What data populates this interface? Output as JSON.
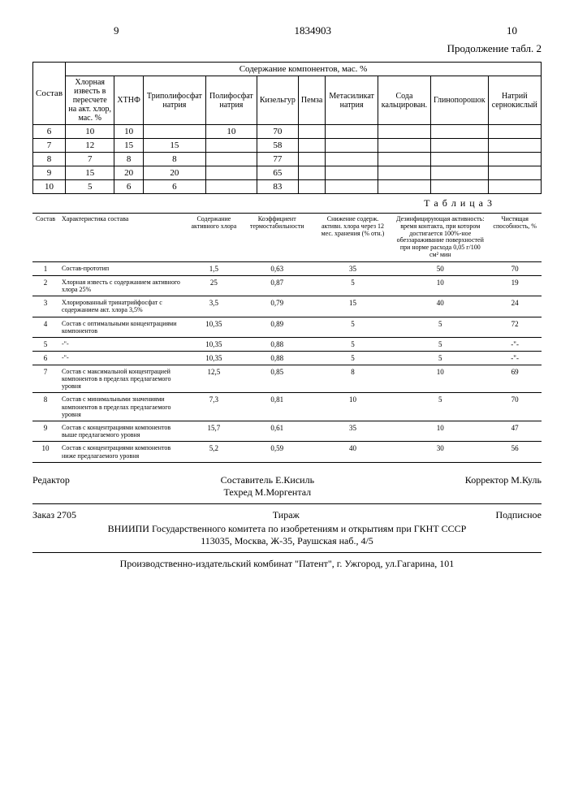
{
  "header": {
    "page_left": "9",
    "doc_number": "1834903",
    "page_right": "10",
    "continuation": "Продолжение табл. 2"
  },
  "table2": {
    "caption": "Содержание компонентов, мас. %",
    "columns": [
      "Состав",
      "Хлорная известь в пересчете на акт. хлор, мас. %",
      "ХТНФ",
      "Триполифосфат натрия",
      "Полифосфат натрия",
      "Кизельгур",
      "Пемза",
      "Метасиликат натрия",
      "Сода кальцирован.",
      "Глинопорошок",
      "Натрий сернокислый"
    ],
    "rows": [
      [
        "6",
        "10",
        "10",
        "",
        "10",
        "70",
        "",
        "",
        "",
        "",
        ""
      ],
      [
        "7",
        "12",
        "15",
        "15",
        "",
        "58",
        "",
        "",
        "",
        "",
        ""
      ],
      [
        "8",
        "7",
        "8",
        "8",
        "",
        "77",
        "",
        "",
        "",
        "",
        ""
      ],
      [
        "9",
        "15",
        "20",
        "20",
        "",
        "65",
        "",
        "",
        "",
        "",
        ""
      ],
      [
        "10",
        "5",
        "6",
        "6",
        "",
        "83",
        "",
        "",
        "",
        "",
        ""
      ]
    ]
  },
  "table3": {
    "label": "Т а б л и ц а  3",
    "columns": [
      "Состав",
      "Характеристика состава",
      "Содержание активного хлора",
      "Коэффициент термостабильности",
      "Снижение содерж. активн. хлора через 12 мес. хранения (% отн.)",
      "Дезинфицирующая активность: время контакта, при котором достигается 100%-ное обеззараживание поверхностей при норме расхода 0,05 г/100 см² мин",
      "Чистящая способность, %"
    ],
    "rows": [
      [
        "1",
        "Состав-прототип",
        "1,5",
        "0,63",
        "35",
        "50",
        "70"
      ],
      [
        "2",
        "Хлорная известь с содержанием активного хлора 25%",
        "25",
        "0,87",
        "5",
        "10",
        "19"
      ],
      [
        "3",
        "Хлорированный тринатрийфосфат с содержанием акт. хлора 3,5%",
        "3,5",
        "0,79",
        "15",
        "40",
        "24"
      ],
      [
        "4",
        "Состав с оптимальными концентрациями компонентов",
        "10,35",
        "0,89",
        "5",
        "5",
        "72"
      ],
      [
        "5",
        "-\"-",
        "10,35",
        "0,88",
        "5",
        "5",
        "-\"-"
      ],
      [
        "6",
        "-\"-",
        "10,35",
        "0,88",
        "5",
        "5",
        "-\"-"
      ],
      [
        "7",
        "Состав с максимальной концентрацией компонентов в пределах предлагаемого уровня",
        "12,5",
        "0,85",
        "8",
        "10",
        "69"
      ],
      [
        "8",
        "Состав с минимальными значениями компонентов в пределах предлагаемого уровня",
        "7,3",
        "0,81",
        "10",
        "5",
        "70"
      ],
      [
        "9",
        "Состав с концентрациями компонентов выше предлагаемого уровня",
        "15,7",
        "0,61",
        "35",
        "10",
        "47"
      ],
      [
        "10",
        "Состав с концентрациями компонентов ниже предлагаемого уровня",
        "5,2",
        "0,59",
        "40",
        "30",
        "56"
      ]
    ]
  },
  "credits": {
    "editor_label": "Редактор",
    "compiler": "Составитель Е.Кисиль",
    "techred": "Техред М.Моргентал",
    "corrector": "Корректор М.Куль",
    "order": "Заказ 2705",
    "tirazh": "Тираж",
    "podpisnoe": "Подписное",
    "org": "ВНИИПИ Государственного комитета по изобретениям и открытиям при ГКНТ СССР",
    "address": "113035, Москва, Ж-35, Раушская наб., 4/5",
    "printer": "Производственно-издательский комбинат \"Патент\", г. Ужгород, ул.Гагарина, 101"
  }
}
